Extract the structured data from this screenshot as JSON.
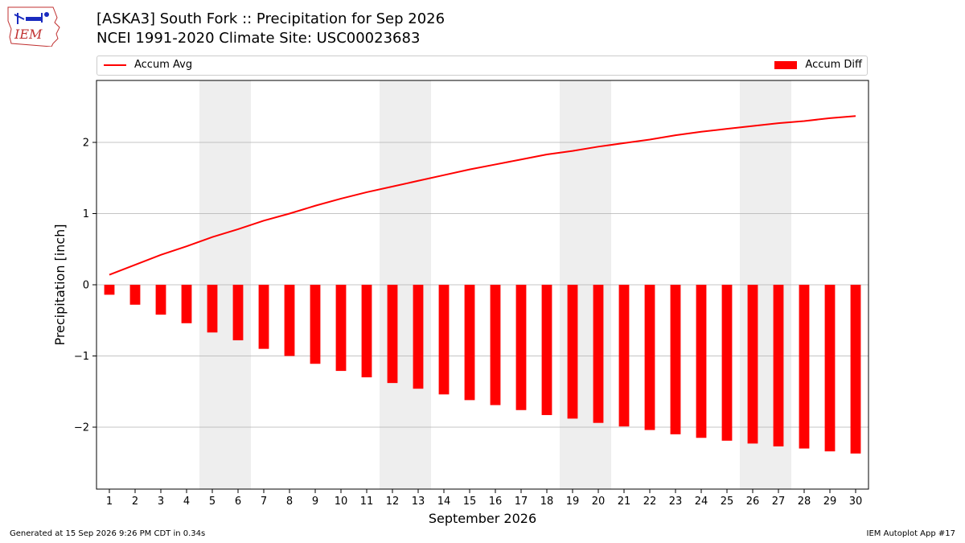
{
  "header": {
    "title_line1": "[ASKA3] South Fork :: Precipitation for Sep 2026",
    "title_line2": "NCEI 1991-2020 Climate Site: USC00023683",
    "logo_text": "IEM"
  },
  "footer": {
    "generated": "Generated at 15 Sep 2026 9:26 PM CDT in 0.34s",
    "app": "IEM Autoplot App #17"
  },
  "colors": {
    "series": "#ff0000",
    "weekend_band": "#eeeeee",
    "grid": "#b0b0b0"
  },
  "chart_data": {
    "type": "bar",
    "title": "[ASKA3] South Fork :: Precipitation for Sep 2026",
    "subtitle": "NCEI 1991-2020 Climate Site: USC00023683",
    "xlabel": "September 2026",
    "ylabel": "Precipitation [inch]",
    "ylim": [
      -2.87,
      2.87
    ],
    "yticks": [
      -2,
      -1,
      0,
      1,
      2
    ],
    "grid": true,
    "legend_position": "top",
    "weekend_days": [
      5,
      6,
      12,
      13,
      19,
      20,
      26,
      27
    ],
    "x": [
      1,
      2,
      3,
      4,
      5,
      6,
      7,
      8,
      9,
      10,
      11,
      12,
      13,
      14,
      15,
      16,
      17,
      18,
      19,
      20,
      21,
      22,
      23,
      24,
      25,
      26,
      27,
      28,
      29,
      30
    ],
    "series": [
      {
        "name": "Accum Avg",
        "type": "line",
        "values": [
          0.14,
          0.28,
          0.42,
          0.54,
          0.67,
          0.78,
          0.9,
          1.0,
          1.11,
          1.21,
          1.3,
          1.38,
          1.46,
          1.54,
          1.62,
          1.69,
          1.76,
          1.83,
          1.88,
          1.94,
          1.99,
          2.04,
          2.1,
          2.15,
          2.19,
          2.23,
          2.27,
          2.3,
          2.34,
          2.37
        ]
      },
      {
        "name": "Accum Diff",
        "type": "bar",
        "values": [
          -0.14,
          -0.28,
          -0.42,
          -0.54,
          -0.67,
          -0.78,
          -0.9,
          -1.0,
          -1.11,
          -1.21,
          -1.3,
          -1.38,
          -1.46,
          -1.54,
          -1.62,
          -1.69,
          -1.76,
          -1.83,
          -1.88,
          -1.94,
          -1.99,
          -2.04,
          -2.1,
          -2.15,
          -2.19,
          -2.23,
          -2.27,
          -2.3,
          -2.34,
          -2.37
        ]
      }
    ]
  }
}
